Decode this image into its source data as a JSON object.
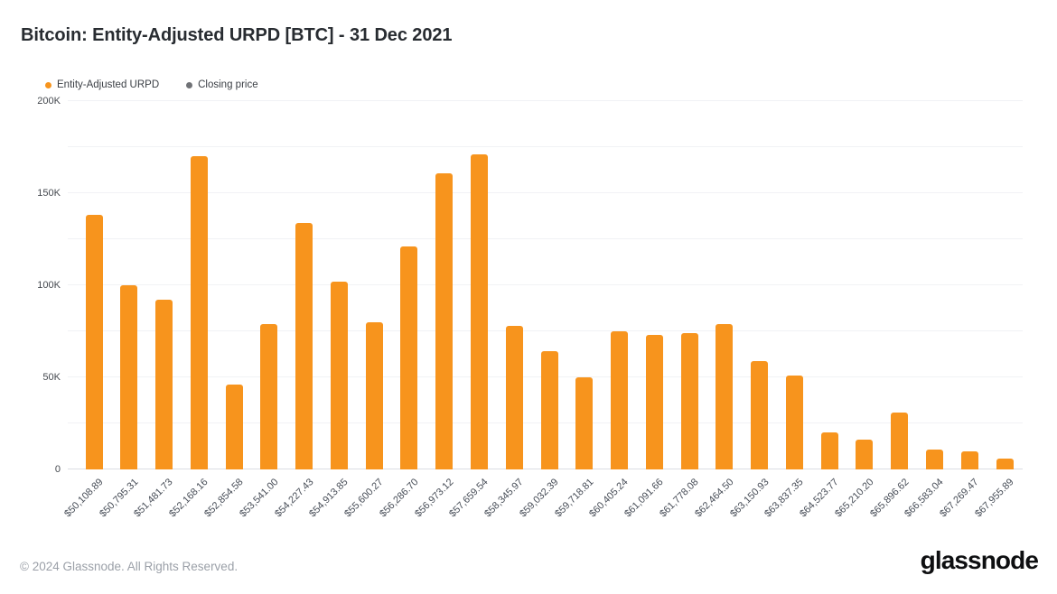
{
  "page": {
    "title": "Bitcoin: Entity-Adjusted URPD [BTC] - 31 Dec 2021",
    "footer": "© 2024 Glassnode. All Rights Reserved.",
    "logo_text": "glassnode"
  },
  "legend": {
    "items": [
      {
        "id": "entity-adjusted-urpd",
        "label": "Entity-Adjusted URPD",
        "color": "#F7941D"
      },
      {
        "id": "closing-price",
        "label": "Closing price",
        "color": "#707276"
      }
    ]
  },
  "chart_data": {
    "type": "bar",
    "title": "Bitcoin: Entity-Adjusted URPD [BTC] - 31 Dec 2021",
    "xlabel": "",
    "ylabel": "",
    "ylim": [
      0,
      200000
    ],
    "grid": true,
    "legend_position": "top-left",
    "minor_gridline_step": 25000,
    "y_ticks": [
      {
        "value": 0,
        "label": "0"
      },
      {
        "value": 50000,
        "label": "50K"
      },
      {
        "value": 100000,
        "label": "100K"
      },
      {
        "value": 150000,
        "label": "150K"
      },
      {
        "value": 200000,
        "label": "200K"
      }
    ],
    "categories": [
      "$50,108.89",
      "$50,795.31",
      "$51,481.73",
      "$52,168.16",
      "$52,854.58",
      "$53,541.00",
      "$54,227.43",
      "$54,913.85",
      "$55,600.27",
      "$56,286.70",
      "$56,973.12",
      "$57,659.54",
      "$58,345.97",
      "$59,032.39",
      "$59,718.81",
      "$60,405.24",
      "$61,091.66",
      "$61,778.08",
      "$62,464.50",
      "$63,150.93",
      "$63,837.35",
      "$64,523.77",
      "$65,210.20",
      "$65,896.62",
      "$66,583.04",
      "$67,269.47",
      "$67,955.89"
    ],
    "series": [
      {
        "name": "Entity-Adjusted URPD",
        "color": "#F7941D",
        "values": [
          138000,
          100000,
          92000,
          170000,
          46000,
          79000,
          134000,
          102000,
          80000,
          121000,
          161000,
          171000,
          78000,
          64000,
          50000,
          75000,
          73000,
          74000,
          79000,
          59000,
          51000,
          20000,
          16000,
          31000,
          11000,
          10000,
          6000
        ]
      }
    ]
  }
}
